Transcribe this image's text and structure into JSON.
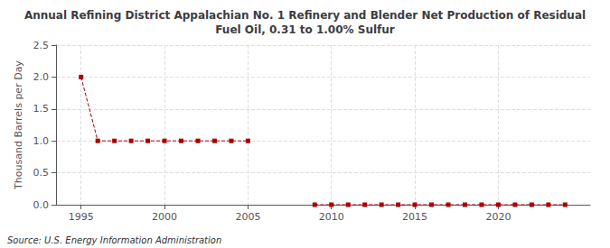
{
  "chart_data": {
    "type": "line",
    "title": "Annual Refining District Appalachian No. 1 Refinery and Blender Net Production of Residual\nFuel Oil, 0.31 to 1.00% Sulfur",
    "ylabel": "Thousand Barrels per Day",
    "annotations": [
      "Source: U.S. Energy Information Administration"
    ],
    "x": [
      1995,
      1996,
      1997,
      1998,
      1999,
      2000,
      2001,
      2002,
      2003,
      2004,
      2005,
      2006,
      2007,
      2008,
      2009,
      2010,
      2011,
      2012,
      2013,
      2014,
      2015,
      2016,
      2017,
      2018,
      2019,
      2020,
      2021,
      2022,
      2023,
      2024
    ],
    "values": [
      2.0,
      1.0,
      1.0,
      1.0,
      1.0,
      1.0,
      1.0,
      1.0,
      1.0,
      1.0,
      1.0,
      null,
      null,
      null,
      0.0,
      0.0,
      0.0,
      0.0,
      0.0,
      0.0,
      0.0,
      0.0,
      0.0,
      0.0,
      0.0,
      0.0,
      0.0,
      0.0,
      0.0,
      0.0
    ],
    "color": "#aa0000",
    "marker": "square",
    "line_style": "dashed",
    "xlim": [
      1993.5,
      2025.5
    ],
    "xticks": [
      1995,
      2000,
      2005,
      2010,
      2015,
      2020
    ],
    "ylim": [
      0.0,
      2.5
    ],
    "yticks": [
      {
        "value": 0.0,
        "label": "0.0"
      },
      {
        "value": 0.5,
        "label": "0.5"
      },
      {
        "value": 1.0,
        "label": "1.0"
      },
      {
        "value": 1.5,
        "label": "1.5"
      },
      {
        "value": 2.0,
        "label": "2.0"
      },
      {
        "value": 2.5,
        "label": "2.5"
      }
    ],
    "grid": true
  }
}
